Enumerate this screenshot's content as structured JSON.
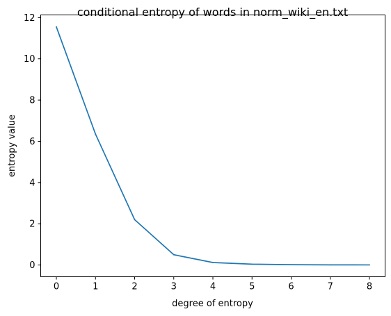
{
  "chart_data": {
    "type": "line",
    "title": "conditional entropy of words in norm_wiki_en.txt",
    "xlabel": "degree of entropy",
    "ylabel": "entropy value",
    "x": [
      0,
      1,
      2,
      3,
      4,
      5,
      6,
      7,
      8
    ],
    "series": [
      {
        "values": [
          11.55,
          6.35,
          2.2,
          0.5,
          0.12,
          0.04,
          0.015,
          0.008,
          0.005
        ],
        "color": "#1f77b4"
      }
    ],
    "xlim": [
      -0.4,
      8.4
    ],
    "ylim": [
      -0.57,
      12.13
    ],
    "xticks": [
      0,
      1,
      2,
      3,
      4,
      5,
      6,
      7,
      8
    ],
    "yticks": [
      0,
      2,
      4,
      6,
      8,
      10,
      12
    ],
    "xtick_labels": [
      "0",
      "1",
      "2",
      "3",
      "4",
      "5",
      "6",
      "7",
      "8"
    ],
    "ytick_labels": [
      "0",
      "2",
      "4",
      "6",
      "8",
      "10",
      "12"
    ],
    "grid": false,
    "legend": "none"
  }
}
